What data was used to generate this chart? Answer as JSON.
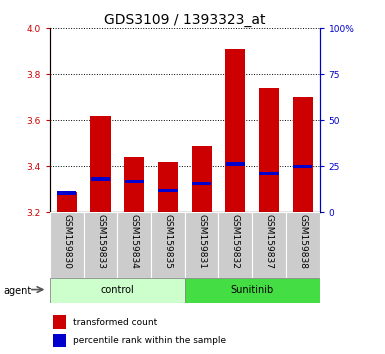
{
  "title": "GDS3109 / 1393323_at",
  "samples": [
    "GSM159830",
    "GSM159833",
    "GSM159834",
    "GSM159835",
    "GSM159831",
    "GSM159832",
    "GSM159837",
    "GSM159838"
  ],
  "groups": [
    "control",
    "control",
    "control",
    "control",
    "Sunitinib",
    "Sunitinib",
    "Sunitinib",
    "Sunitinib"
  ],
  "transformed_count": [
    3.29,
    3.62,
    3.44,
    3.42,
    3.49,
    3.91,
    3.74,
    3.7
  ],
  "percentile_rank_value": [
    3.285,
    3.345,
    3.335,
    3.295,
    3.325,
    3.41,
    3.37,
    3.4
  ],
  "bar_color": "#cc0000",
  "blue_color": "#0000cc",
  "ylim_left": [
    3.2,
    4.0
  ],
  "ylim_right": [
    0,
    100
  ],
  "yticks_left": [
    3.2,
    3.4,
    3.6,
    3.8,
    4.0
  ],
  "yticks_right": [
    0,
    25,
    50,
    75,
    100
  ],
  "ytick_labels_right": [
    "0",
    "25",
    "50",
    "75",
    "100%"
  ],
  "ybase": 3.2,
  "left_axis_color": "#cc0000",
  "right_axis_color": "#0000cc",
  "control_color": "#ccffcc",
  "sunitinib_color": "#44dd44",
  "sample_bg_color": "#cccccc",
  "agent_label": "agent",
  "legend_items": [
    "transformed count",
    "percentile rank within the sample"
  ],
  "bar_width": 0.6,
  "tick_label_size": 6.5,
  "title_fontsize": 10
}
